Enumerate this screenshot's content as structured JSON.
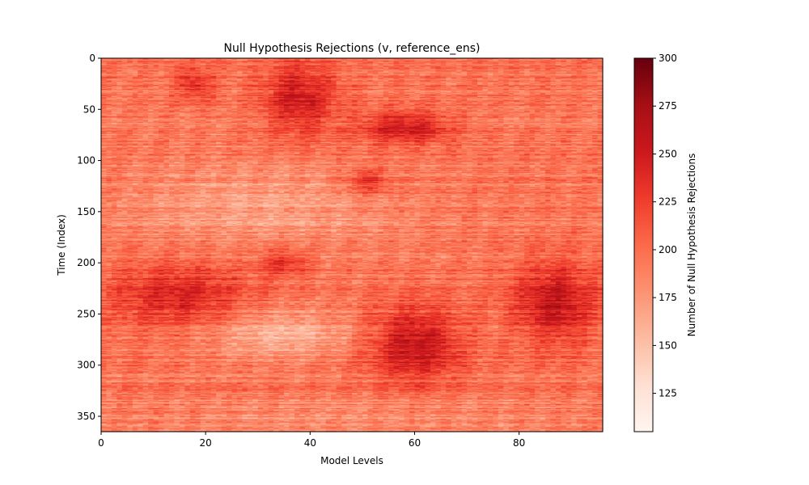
{
  "chart_data": {
    "type": "heatmap",
    "title": "Null Hypothesis Rejections (v, reference_ens)",
    "xlabel": "Model Levels",
    "ylabel": "Time (Index)",
    "xlim": [
      0,
      96
    ],
    "ylim": [
      365,
      0
    ],
    "x_ticks": [
      0,
      20,
      40,
      60,
      80
    ],
    "y_ticks": [
      0,
      50,
      100,
      150,
      200,
      250,
      300,
      350
    ],
    "colorbar": {
      "label": "Number of Null Hypothesis Rejections",
      "colormap": "Reds",
      "range": [
        105,
        300
      ],
      "ticks": [
        125,
        150,
        175,
        200,
        225,
        250,
        275,
        300
      ]
    },
    "grid": false,
    "grid_shape": {
      "levels": 96,
      "time_steps": 365
    },
    "value_fields": [
      {
        "level_range": [
          0,
          96
        ],
        "time_range": [
          0,
          365
        ],
        "value": 195
      },
      {
        "level_range": [
          14,
          22
        ],
        "time_range": [
          5,
          45
        ],
        "value": 232
      },
      {
        "level_range": [
          30,
          46
        ],
        "time_range": [
          0,
          80
        ],
        "value": 250
      },
      {
        "level_range": [
          48,
          68
        ],
        "time_range": [
          50,
          85
        ],
        "value": 255
      },
      {
        "level_range": [
          46,
          56
        ],
        "time_range": [
          105,
          135
        ],
        "value": 235
      },
      {
        "level_range": [
          0,
          60
        ],
        "time_range": [
          95,
          190
        ],
        "value": 170
      },
      {
        "level_range": [
          0,
          30
        ],
        "time_range": [
          195,
          270
        ],
        "value": 240
      },
      {
        "level_range": [
          30,
          40
        ],
        "time_range": [
          185,
          215
        ],
        "value": 235
      },
      {
        "level_range": [
          18,
          50
        ],
        "time_range": [
          240,
          300
        ],
        "value": 160
      },
      {
        "level_range": [
          50,
          70
        ],
        "time_range": [
          240,
          320
        ],
        "value": 260
      },
      {
        "level_range": [
          78,
          96
        ],
        "time_range": [
          195,
          285
        ],
        "value": 255
      },
      {
        "level_range": [
          0,
          96
        ],
        "time_range": [
          330,
          365
        ],
        "value": 180
      }
    ]
  }
}
